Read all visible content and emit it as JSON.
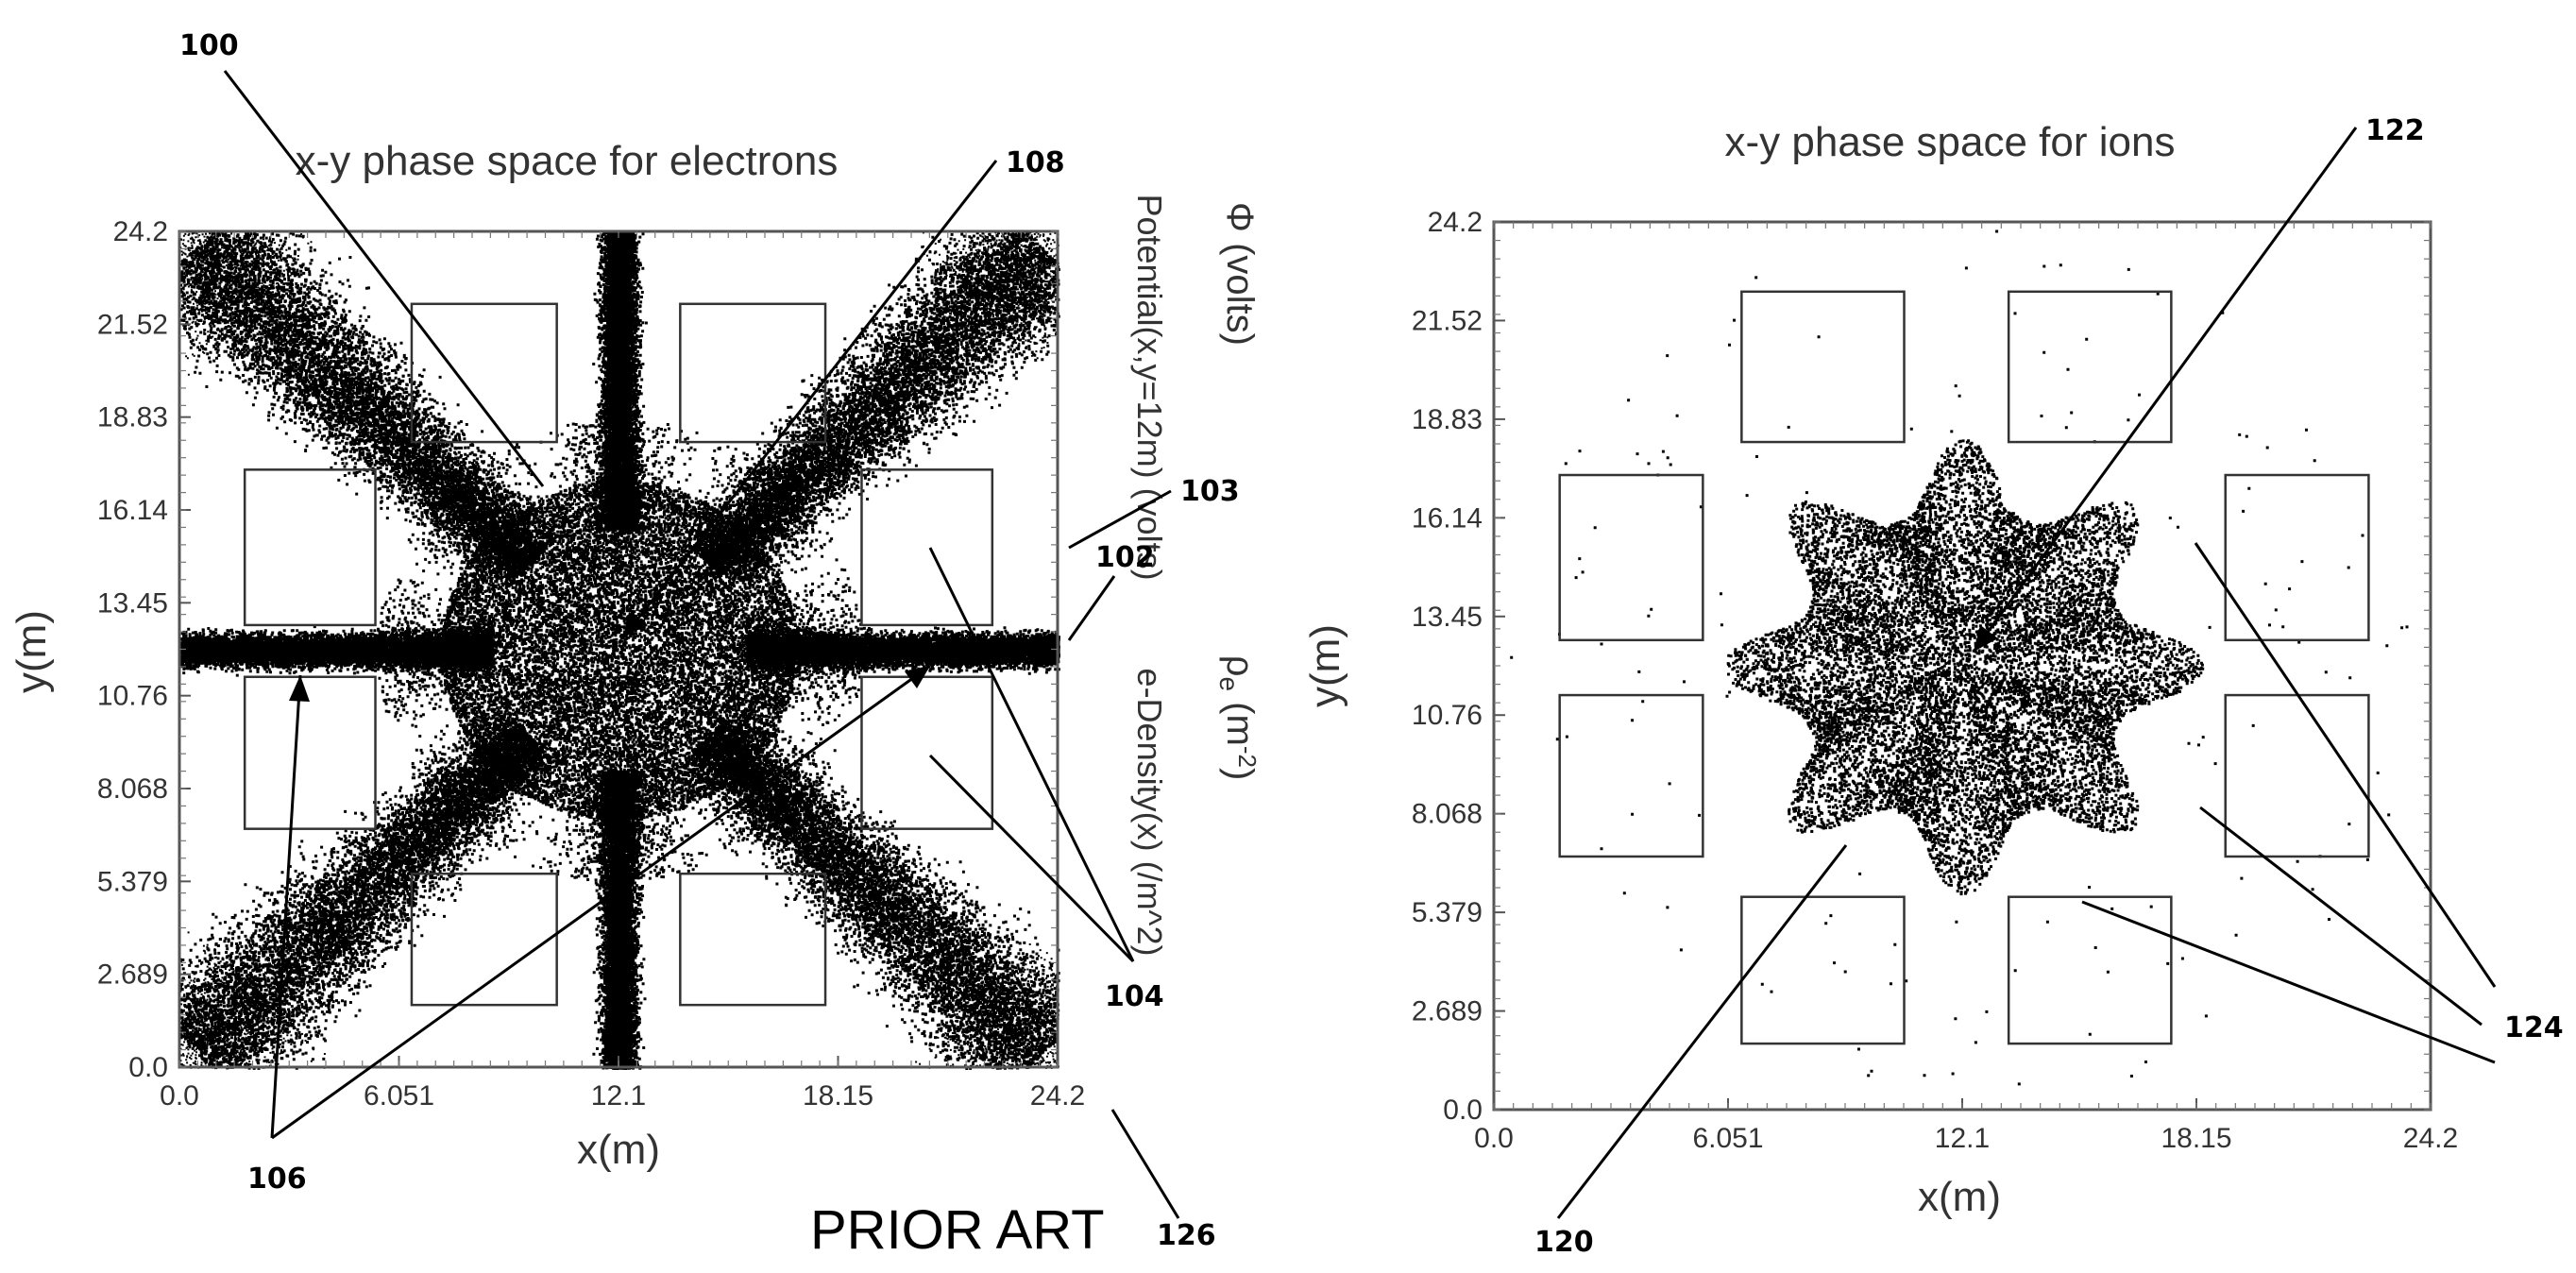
{
  "chart_data": [
    {
      "type": "scatter",
      "title": "x-y phase space for electrons",
      "xlabel": "x(m)",
      "ylabel": "y(m)",
      "xlim": [
        0.0,
        24.2
      ],
      "ylim": [
        0.0,
        24.2
      ],
      "x_ticks": [
        "0.0",
        "6.051",
        "12.1",
        "18.15",
        "24.2"
      ],
      "y_ticks": [
        "0.0",
        "2.689",
        "5.379",
        "8.068",
        "10.76",
        "13.45",
        "16.14",
        "18.83",
        "21.52",
        "24.2"
      ],
      "right_labels": [
        "Potential(x,y=12m)  (volts)",
        "Φ (volts)",
        "e-Density(x)  (/m^2)"
      ],
      "right_label_rho": "ρ",
      "right_label_rho_sub": "e",
      "right_label_rho_unit": " (m",
      "right_label_rho_exp": "-2",
      "right_label_rho_close": ")",
      "distribution": "dense central cloud with eight arms (4 diagonal, 4 axial)",
      "cloud_center": [
        12.1,
        12.1
      ],
      "electrodes": [
        {
          "x0": 6.4,
          "y0": 18.1,
          "x1": 10.4,
          "y1": 22.1
        },
        {
          "x0": 13.8,
          "y0": 18.1,
          "x1": 17.8,
          "y1": 22.1
        },
        {
          "x0": 1.8,
          "y0": 12.8,
          "x1": 5.4,
          "y1": 17.3
        },
        {
          "x0": 18.8,
          "y0": 12.8,
          "x1": 22.4,
          "y1": 17.3
        },
        {
          "x0": 1.8,
          "y0": 6.9,
          "x1": 5.4,
          "y1": 11.3
        },
        {
          "x0": 18.8,
          "y0": 6.9,
          "x1": 22.4,
          "y1": 11.3
        },
        {
          "x0": 6.4,
          "y0": 1.8,
          "x1": 10.4,
          "y1": 5.6
        },
        {
          "x0": 13.8,
          "y0": 1.8,
          "x1": 17.8,
          "y1": 5.6
        }
      ]
    },
    {
      "type": "scatter",
      "title": "x-y phase space for ions",
      "xlabel": "x(m)",
      "ylabel": "y(m)",
      "xlim": [
        0.0,
        24.2
      ],
      "ylim": [
        0.0,
        24.2
      ],
      "x_ticks": [
        "0.0",
        "6.051",
        "12.1",
        "18.15",
        "24.2"
      ],
      "y_ticks": [
        "0.0",
        "2.689",
        "5.379",
        "8.068",
        "10.76",
        "13.45",
        "16.14",
        "18.83",
        "21.52",
        "24.2"
      ],
      "distribution": "eight-pointed star-shaped central cloud",
      "cloud_center": [
        12.1,
        12.1
      ],
      "electrodes": [
        {
          "x0": 6.4,
          "y0": 18.2,
          "x1": 10.6,
          "y1": 22.3
        },
        {
          "x0": 13.3,
          "y0": 18.2,
          "x1": 17.5,
          "y1": 22.3
        },
        {
          "x0": 1.7,
          "y0": 12.8,
          "x1": 5.4,
          "y1": 17.3
        },
        {
          "x0": 18.9,
          "y0": 12.8,
          "x1": 22.6,
          "y1": 17.3
        },
        {
          "x0": 1.7,
          "y0": 6.9,
          "x1": 5.4,
          "y1": 11.3
        },
        {
          "x0": 18.9,
          "y0": 6.9,
          "x1": 22.6,
          "y1": 11.3
        },
        {
          "x0": 6.4,
          "y0": 1.8,
          "x1": 10.6,
          "y1": 5.8
        },
        {
          "x0": 13.3,
          "y0": 1.8,
          "x1": 17.5,
          "y1": 5.8
        }
      ]
    }
  ],
  "annotations": {
    "ref_100": "100",
    "ref_102": "102",
    "ref_103": "103",
    "ref_104": "104",
    "ref_106": "106",
    "ref_108": "108",
    "ref_120": "120",
    "ref_122": "122",
    "ref_124": "124",
    "ref_126": "126",
    "prior_art": "PRIOR ART"
  },
  "colors": {
    "particles": "#000000",
    "frame": "#555555",
    "text": "#333333"
  }
}
